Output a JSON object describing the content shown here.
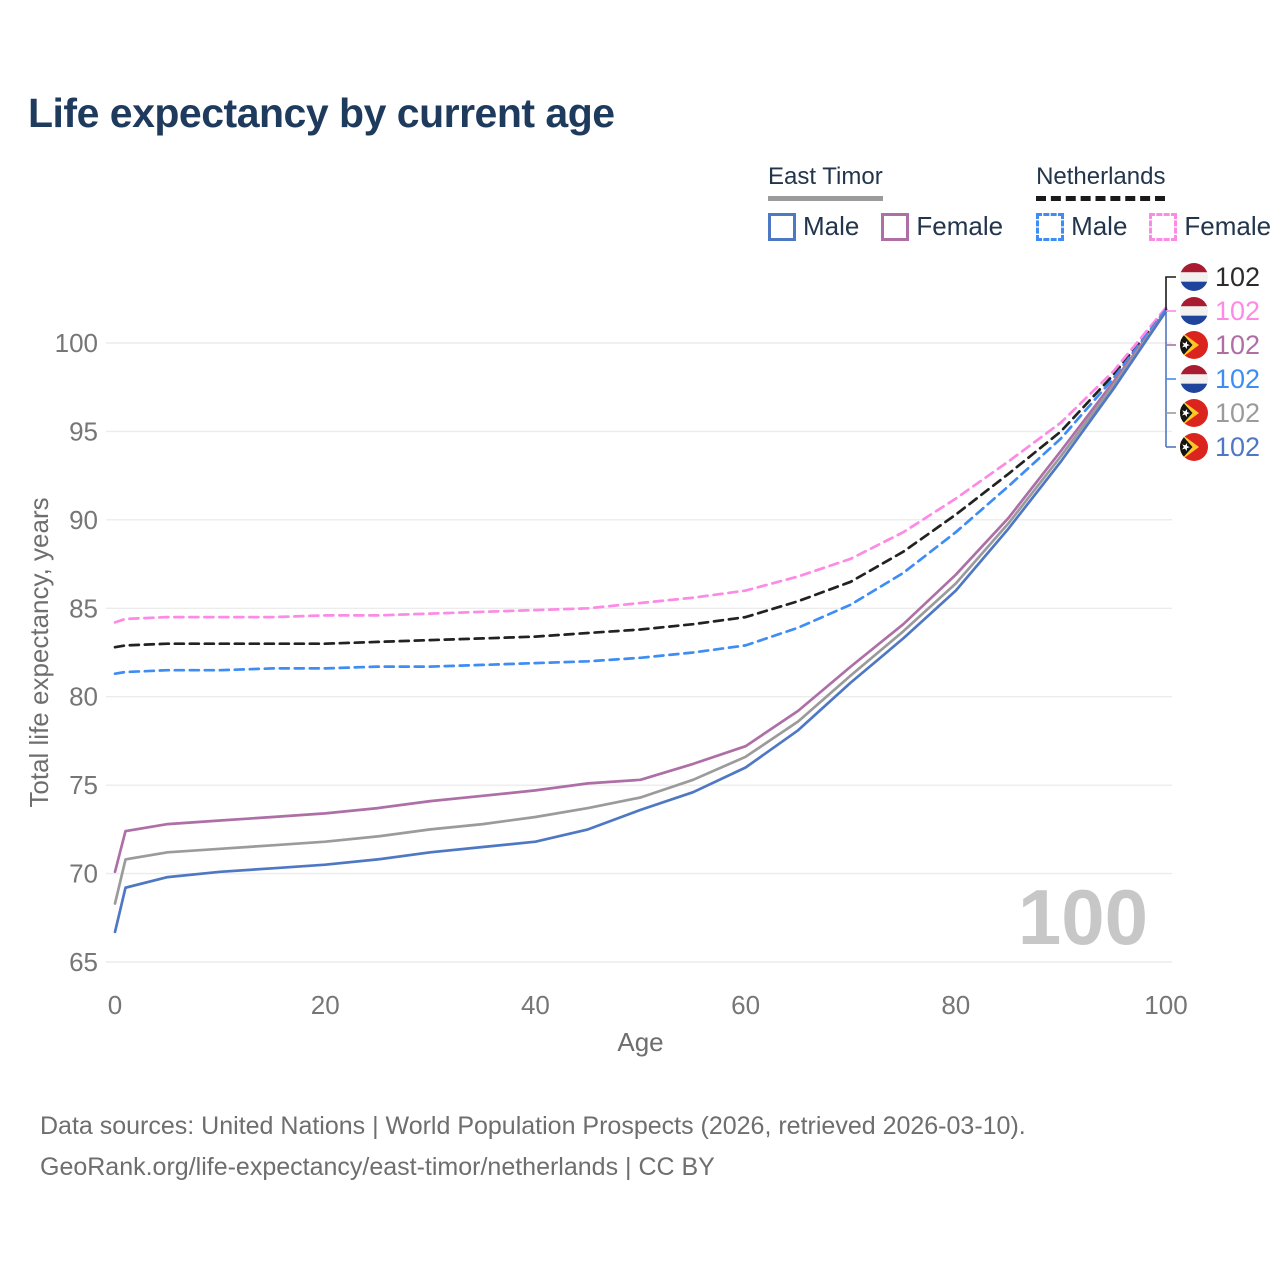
{
  "page": {
    "title": "Life expectancy by current age"
  },
  "legend": {
    "groups": [
      {
        "name": "East Timor",
        "line_style": "solid",
        "underline_color": "#9b9b9b",
        "items": [
          {
            "label": "Male",
            "color": "#4e78c4"
          },
          {
            "label": "Female",
            "color": "#ae6fa7"
          }
        ]
      },
      {
        "name": "Netherlands",
        "line_style": "dashed",
        "underline_color": "#1a1a1a",
        "items": [
          {
            "label": "Male",
            "color": "#3e8df5"
          },
          {
            "label": "Female",
            "color": "#fd8ae5"
          }
        ]
      }
    ]
  },
  "chart_data": {
    "type": "line",
    "title": "Life expectancy by current age",
    "xlabel": "Age",
    "ylabel": "Total life expectancy, years",
    "xlim": [
      0,
      100
    ],
    "ylim": [
      65,
      100
    ],
    "x_ticks": [
      0,
      20,
      40,
      60,
      80,
      100
    ],
    "y_ticks": [
      65,
      70,
      75,
      80,
      85,
      90,
      95,
      100
    ],
    "grid": "horizontal",
    "legend_position": "top-right",
    "x": [
      0,
      1,
      5,
      10,
      15,
      20,
      25,
      30,
      35,
      40,
      45,
      50,
      55,
      60,
      65,
      70,
      75,
      80,
      85,
      90,
      95,
      100
    ],
    "series": [
      {
        "name": "Netherlands Total",
        "country": "Netherlands",
        "sex": "Total",
        "color": "#222222",
        "dash": "dashed",
        "values": [
          82.8,
          82.9,
          83.0,
          83.0,
          83.0,
          83.0,
          83.1,
          83.2,
          83.3,
          83.4,
          83.6,
          83.8,
          84.1,
          84.5,
          85.4,
          86.5,
          88.2,
          90.3,
          92.6,
          95.0,
          98.2,
          101.9
        ]
      },
      {
        "name": "Netherlands Female",
        "country": "Netherlands",
        "sex": "Female",
        "color": "#fd8ae5",
        "dash": "dashed",
        "values": [
          84.2,
          84.4,
          84.5,
          84.5,
          84.5,
          84.6,
          84.6,
          84.7,
          84.8,
          84.9,
          85.0,
          85.3,
          85.6,
          86.0,
          86.8,
          87.8,
          89.3,
          91.2,
          93.3,
          95.5,
          98.4,
          102.0
        ]
      },
      {
        "name": "Netherlands Male",
        "country": "Netherlands",
        "sex": "Male",
        "color": "#3e8df5",
        "dash": "dashed",
        "values": [
          81.3,
          81.4,
          81.5,
          81.5,
          81.6,
          81.6,
          81.7,
          81.7,
          81.8,
          81.9,
          82.0,
          82.2,
          82.5,
          82.9,
          83.9,
          85.2,
          87.0,
          89.3,
          91.9,
          94.6,
          98.0,
          101.9
        ]
      },
      {
        "name": "East Timor Female",
        "country": "East Timor",
        "sex": "Female",
        "color": "#ae6fa7",
        "dash": "solid",
        "values": [
          70.1,
          72.4,
          72.8,
          73.0,
          73.2,
          73.4,
          73.7,
          74.1,
          74.4,
          74.7,
          75.1,
          75.3,
          76.2,
          77.2,
          79.2,
          81.7,
          84.1,
          86.9,
          90.1,
          93.9,
          97.8,
          101.8
        ]
      },
      {
        "name": "East Timor Total",
        "country": "East Timor",
        "sex": "Total",
        "color": "#9b9b9b",
        "dash": "solid",
        "values": [
          68.3,
          70.8,
          71.2,
          71.4,
          71.6,
          71.8,
          72.1,
          72.5,
          72.8,
          73.2,
          73.7,
          74.3,
          75.3,
          76.6,
          78.6,
          81.2,
          83.7,
          86.4,
          89.8,
          93.6,
          97.6,
          101.8
        ]
      },
      {
        "name": "East Timor Male",
        "country": "East Timor",
        "sex": "Male",
        "color": "#4e78c4",
        "dash": "solid",
        "values": [
          66.7,
          69.2,
          69.8,
          70.1,
          70.3,
          70.5,
          70.8,
          71.2,
          71.5,
          71.8,
          72.5,
          73.6,
          74.6,
          76.0,
          78.1,
          80.8,
          83.3,
          86.0,
          89.5,
          93.3,
          97.4,
          101.8
        ]
      }
    ],
    "end_labels": [
      {
        "value": "102",
        "flag": "netherlands",
        "series": "Netherlands Total",
        "color": "#2b2b2b"
      },
      {
        "value": "102",
        "flag": "netherlands",
        "series": "Netherlands Female",
        "color": "#fd8ae5"
      },
      {
        "value": "102",
        "flag": "east-timor",
        "series": "East Timor Female",
        "color": "#ae6fa7"
      },
      {
        "value": "102",
        "flag": "netherlands",
        "series": "Netherlands Male",
        "color": "#3e8df5"
      },
      {
        "value": "102",
        "flag": "east-timor",
        "series": "East Timor Total",
        "color": "#9b9b9b"
      },
      {
        "value": "102",
        "flag": "east-timor",
        "series": "East Timor Male",
        "color": "#4e78c4"
      }
    ],
    "age_counter": "100",
    "colors": {
      "grid": "#ececec",
      "tick_label": "#767676",
      "axis_title": "#6e6e6e",
      "bracket_black": "#1a1a1a",
      "bracket_blue": "#4e78c4"
    },
    "flag_colors": {
      "netherlands": {
        "top": "#A81B31",
        "middle": "#f2f1ef",
        "bottom": "#1E459B"
      },
      "east_timor": {
        "field": "#DC241F",
        "chevron": "#FFC726",
        "triangle": "#141414",
        "star": "#ffffff"
      }
    }
  },
  "footer": {
    "line1": "Data sources: United Nations | World Population Prospects (2026, retrieved 2026-03-10).",
    "line2": "GeoRank.org/life-expectancy/east-timor/netherlands | CC BY"
  }
}
